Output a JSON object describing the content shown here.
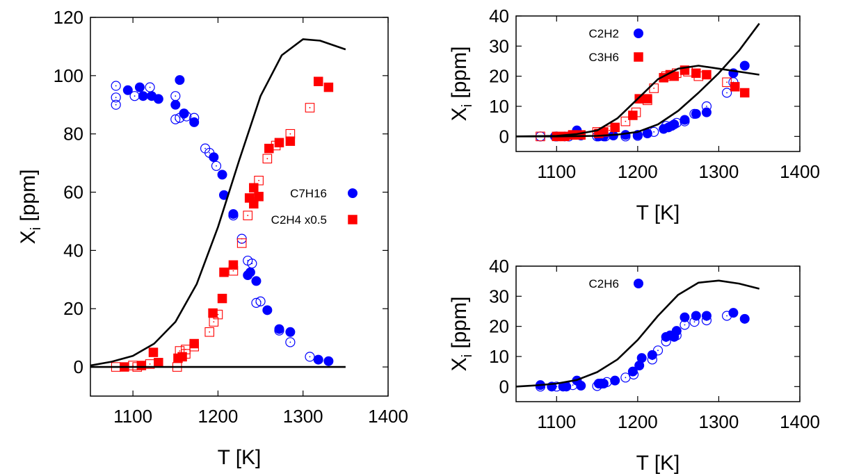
{
  "colors": {
    "circle": "#0000ff",
    "square": "#ff0000",
    "model": "#000000",
    "axis": "#000000"
  },
  "chart_data": [
    {
      "type": "scatter",
      "xlabel": "T [K]",
      "ylabel_main": "X",
      "ylabel_sub": "i",
      "ylabel_tail": " [ppm]",
      "xlim": [
        1050,
        1400
      ],
      "ylim": [
        -10,
        120
      ],
      "xticks": [
        "1100",
        "1200",
        "1300",
        "1400"
      ],
      "yticks": [
        "0",
        "20",
        "40",
        "60",
        "80",
        "100",
        "120"
      ],
      "series": [
        {
          "name": "C7H16",
          "marker": "circle",
          "filled": [
            [
              1094,
              95
            ],
            [
              1108,
              96
            ],
            [
              1112,
              93
            ],
            [
              1122,
              93
            ],
            [
              1130,
              92
            ],
            [
              1150,
              90
            ],
            [
              1155,
              98.5
            ],
            [
              1160,
              87
            ],
            [
              1172,
              84
            ],
            [
              1195,
              72
            ],
            [
              1205,
              66
            ],
            [
              1207,
              59
            ],
            [
              1218,
              52.5
            ],
            [
              1235,
              31.5
            ],
            [
              1238,
              32.5
            ],
            [
              1245,
              29.5
            ],
            [
              1258,
              19.5
            ],
            [
              1272,
              13
            ],
            [
              1285,
              12
            ],
            [
              1318,
              2.5
            ],
            [
              1330,
              2
            ]
          ],
          "open": [
            [
              1080,
              96.5
            ],
            [
              1080,
              92.5
            ],
            [
              1080,
              90
            ],
            [
              1102,
              93
            ],
            [
              1120,
              96
            ],
            [
              1150,
              93
            ],
            [
              1150,
              85
            ],
            [
              1155,
              85.5
            ],
            [
              1160,
              87
            ],
            [
              1163,
              86
            ],
            [
              1172,
              85.5
            ],
            [
              1185,
              75
            ],
            [
              1190,
              73.5
            ],
            [
              1198,
              69
            ],
            [
              1218,
              52
            ],
            [
              1228,
              44
            ],
            [
              1235,
              36.5
            ],
            [
              1240,
              35.5
            ],
            [
              1245,
              22
            ],
            [
              1250,
              22.5
            ],
            [
              1272,
              12.5
            ],
            [
              1285,
              8.5
            ],
            [
              1308,
              3.5
            ]
          ]
        },
        {
          "name": "C2H4 x0.5",
          "marker": "square",
          "filled": [
            [
              1090,
              0
            ],
            [
              1110,
              0.5
            ],
            [
              1124,
              5
            ],
            [
              1130,
              1.5
            ],
            [
              1153,
              3
            ],
            [
              1158,
              3.5
            ],
            [
              1172,
              8
            ],
            [
              1194,
              18.5
            ],
            [
              1205,
              23.5
            ],
            [
              1207,
              32.5
            ],
            [
              1218,
              35
            ],
            [
              1237,
              58
            ],
            [
              1242,
              56
            ],
            [
              1242,
              61.5
            ],
            [
              1248,
              58.5
            ],
            [
              1260,
              75
            ],
            [
              1272,
              77
            ],
            [
              1285,
              77.5
            ],
            [
              1318,
              98
            ],
            [
              1330,
              96
            ]
          ],
          "open": [
            [
              1080,
              0
            ],
            [
              1100,
              0.5
            ],
            [
              1105,
              0
            ],
            [
              1120,
              1
            ],
            [
              1152,
              0
            ],
            [
              1155,
              5.5
            ],
            [
              1162,
              4.5
            ],
            [
              1162,
              6
            ],
            [
              1172,
              7
            ],
            [
              1190,
              12
            ],
            [
              1195,
              15.5
            ],
            [
              1200,
              18
            ],
            [
              1218,
              33
            ],
            [
              1228,
              42.5
            ],
            [
              1235,
              52
            ],
            [
              1242,
              58
            ],
            [
              1248,
              64
            ],
            [
              1258,
              71.5
            ],
            [
              1268,
              76
            ],
            [
              1285,
              80
            ],
            [
              1308,
              89
            ]
          ]
        }
      ],
      "model_lines": [
        {
          "points": [
            [
              1050,
              0.5
            ],
            [
              1075,
              1.8
            ],
            [
              1100,
              3.8
            ],
            [
              1125,
              8
            ],
            [
              1150,
              15.5
            ],
            [
              1175,
              28.5
            ],
            [
              1200,
              48
            ],
            [
              1225,
              71
            ],
            [
              1250,
              93
            ],
            [
              1275,
              107
            ],
            [
              1300,
              112.5
            ],
            [
              1320,
              112
            ],
            [
              1350,
              109
            ]
          ]
        },
        {
          "points": [
            [
              1050,
              0
            ],
            [
              1350,
              0
            ]
          ]
        }
      ],
      "legend": {
        "position": "middle-right",
        "entries": [
          "C7H16",
          "C2H4 x0.5"
        ]
      }
    },
    {
      "type": "scatter",
      "xlabel": "T [K]",
      "ylabel_main": "X",
      "ylabel_sub": "i",
      "ylabel_tail": " [ppm]",
      "xlim": [
        1050,
        1400
      ],
      "ylim": [
        -5,
        40
      ],
      "xticks": [
        "1100",
        "1200",
        "1300",
        "1400"
      ],
      "yticks": [
        "0",
        "10",
        "20",
        "30",
        "40"
      ],
      "series": [
        {
          "name": "C2H2",
          "marker": "circle",
          "filled": [
            [
              1098,
              0
            ],
            [
              1110,
              0
            ],
            [
              1125,
              2
            ],
            [
              1130,
              0.3
            ],
            [
              1152,
              0
            ],
            [
              1158,
              0
            ],
            [
              1170,
              0.3
            ],
            [
              1185,
              0.5
            ],
            [
              1200,
              0.5
            ],
            [
              1212,
              1
            ],
            [
              1232,
              2.5
            ],
            [
              1238,
              3
            ],
            [
              1242,
              3.5
            ],
            [
              1245,
              4
            ],
            [
              1258,
              5.5
            ],
            [
              1272,
              7.5
            ],
            [
              1285,
              8
            ],
            [
              1318,
              21
            ],
            [
              1332,
              23.5
            ]
          ],
          "open": [
            [
              1080,
              0
            ],
            [
              1100,
              0
            ],
            [
              1115,
              0
            ],
            [
              1150,
              0
            ],
            [
              1160,
              0
            ],
            [
              1185,
              0
            ],
            [
              1200,
              0.2
            ],
            [
              1220,
              1.5
            ],
            [
              1235,
              3.5
            ],
            [
              1248,
              4.5
            ],
            [
              1258,
              5
            ],
            [
              1270,
              7.5
            ],
            [
              1285,
              10
            ],
            [
              1310,
              14.5
            ],
            [
              1318,
              18
            ]
          ]
        },
        {
          "name": "C3H6",
          "marker": "square",
          "filled": [
            [
              1100,
              0
            ],
            [
              1110,
              0
            ],
            [
              1120,
              0.5
            ],
            [
              1130,
              0.5
            ],
            [
              1152,
              1
            ],
            [
              1158,
              1.5
            ],
            [
              1172,
              3
            ],
            [
              1194,
              7
            ],
            [
              1202,
              12.5
            ],
            [
              1212,
              12.5
            ],
            [
              1232,
              19.5
            ],
            [
              1240,
              20.5
            ],
            [
              1245,
              20
            ],
            [
              1258,
              22
            ],
            [
              1272,
              21
            ],
            [
              1285,
              20.5
            ],
            [
              1320,
              16.5
            ],
            [
              1332,
              14.5
            ]
          ],
          "open": [
            [
              1080,
              0
            ],
            [
              1105,
              0
            ],
            [
              1120,
              0.5
            ],
            [
              1150,
              1.5
            ],
            [
              1165,
              2
            ],
            [
              1185,
              5
            ],
            [
              1198,
              8
            ],
            [
              1212,
              12
            ],
            [
              1220,
              16
            ],
            [
              1235,
              20
            ],
            [
              1248,
              21
            ],
            [
              1262,
              21.5
            ],
            [
              1275,
              20
            ],
            [
              1310,
              18
            ]
          ]
        }
      ],
      "model_lines": [
        {
          "points": [
            [
              1050,
              0
            ],
            [
              1100,
              0.2
            ],
            [
              1125,
              0.8
            ],
            [
              1150,
              2
            ],
            [
              1175,
              6
            ],
            [
              1200,
              12.5
            ],
            [
              1225,
              19
            ],
            [
              1250,
              22.5
            ],
            [
              1275,
              23.5
            ],
            [
              1300,
              22.5
            ],
            [
              1350,
              20.5
            ]
          ]
        },
        {
          "points": [
            [
              1050,
              0
            ],
            [
              1100,
              0
            ],
            [
              1150,
              0.2
            ],
            [
              1175,
              0.6
            ],
            [
              1200,
              1.5
            ],
            [
              1225,
              4
            ],
            [
              1250,
              8.5
            ],
            [
              1275,
              14.5
            ],
            [
              1300,
              21
            ],
            [
              1325,
              28.5
            ],
            [
              1350,
              37.5
            ]
          ]
        }
      ],
      "legend": {
        "position": "top-left",
        "entries": [
          "C2H2",
          "C3H6"
        ]
      }
    },
    {
      "type": "scatter",
      "xlabel": "T [K]",
      "ylabel_main": "X",
      "ylabel_sub": "i",
      "ylabel_tail": " [ppm]",
      "xlim": [
        1050,
        1400
      ],
      "ylim": [
        -5,
        40
      ],
      "xticks": [
        "1100",
        "1200",
        "1300",
        "1400"
      ],
      "yticks": [
        "0",
        "10",
        "20",
        "30",
        "40"
      ],
      "series": [
        {
          "name": "C2H6",
          "marker": "circle",
          "filled": [
            [
              1080,
              0.5
            ],
            [
              1094,
              0
            ],
            [
              1108,
              0
            ],
            [
              1112,
              0
            ],
            [
              1125,
              2
            ],
            [
              1130,
              0.3
            ],
            [
              1152,
              1
            ],
            [
              1158,
              1
            ],
            [
              1172,
              2
            ],
            [
              1194,
              5
            ],
            [
              1202,
              7
            ],
            [
              1205,
              9.5
            ],
            [
              1218,
              10.5
            ],
            [
              1235,
              16.5
            ],
            [
              1240,
              17
            ],
            [
              1245,
              16.5
            ],
            [
              1248,
              18.5
            ],
            [
              1258,
              23
            ],
            [
              1272,
              23.5
            ],
            [
              1285,
              23.5
            ],
            [
              1318,
              24.5
            ],
            [
              1332,
              22.5
            ]
          ],
          "open": [
            [
              1080,
              0
            ],
            [
              1100,
              0
            ],
            [
              1120,
              0.5
            ],
            [
              1150,
              0.2
            ],
            [
              1155,
              1
            ],
            [
              1162,
              1.5
            ],
            [
              1185,
              3
            ],
            [
              1195,
              4
            ],
            [
              1218,
              9
            ],
            [
              1225,
              12
            ],
            [
              1235,
              15
            ],
            [
              1248,
              17
            ],
            [
              1258,
              20.5
            ],
            [
              1270,
              21.5
            ],
            [
              1285,
              22
            ],
            [
              1310,
              23.5
            ]
          ]
        }
      ],
      "model_lines": [
        {
          "points": [
            [
              1050,
              0
            ],
            [
              1075,
              0.4
            ],
            [
              1100,
              1
            ],
            [
              1125,
              2.2
            ],
            [
              1150,
              4.8
            ],
            [
              1175,
              9
            ],
            [
              1200,
              15.5
            ],
            [
              1225,
              23.5
            ],
            [
              1250,
              30.5
            ],
            [
              1275,
              34.5
            ],
            [
              1300,
              35.2
            ],
            [
              1325,
              34.2
            ],
            [
              1350,
              32.5
            ]
          ]
        }
      ],
      "legend": {
        "position": "top-left",
        "entries": [
          "C2H6"
        ]
      }
    }
  ]
}
